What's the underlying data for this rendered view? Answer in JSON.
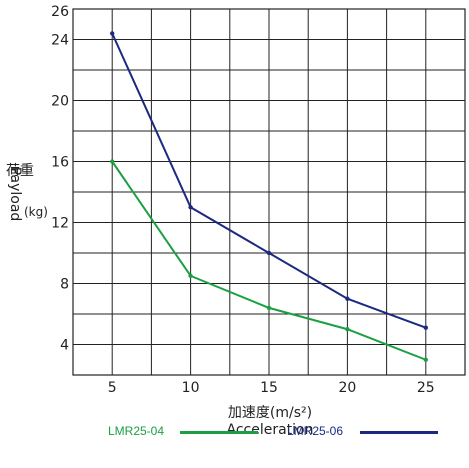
{
  "chart_data": {
    "type": "line",
    "x": [
      5,
      10,
      15,
      20,
      25
    ],
    "series": [
      {
        "name": "LMR25-04",
        "values": [
          16,
          8.5,
          6.4,
          5,
          3
        ],
        "color": "#1aa043"
      },
      {
        "name": "LMR25-06",
        "values": [
          24.4,
          13,
          10,
          7,
          5.1
        ],
        "color": "#1b2a80"
      }
    ],
    "xticks": [
      "5",
      "10",
      "15",
      "20",
      "25"
    ],
    "yticks": [
      "4",
      "8",
      "12",
      "16",
      "20",
      "24"
    ],
    "ytop_label": "26",
    "xlim": [
      2.5,
      27.5
    ],
    "ylim": [
      2,
      26
    ],
    "grid": true,
    "ylabel_cjk": "荷重",
    "ylabel_en": "Payload",
    "ylabel_unit": "(kg)",
    "xlabel_cjk": "加速度(m/s²)",
    "xlabel_en": "Acceleration",
    "legend_position": "bottom"
  }
}
